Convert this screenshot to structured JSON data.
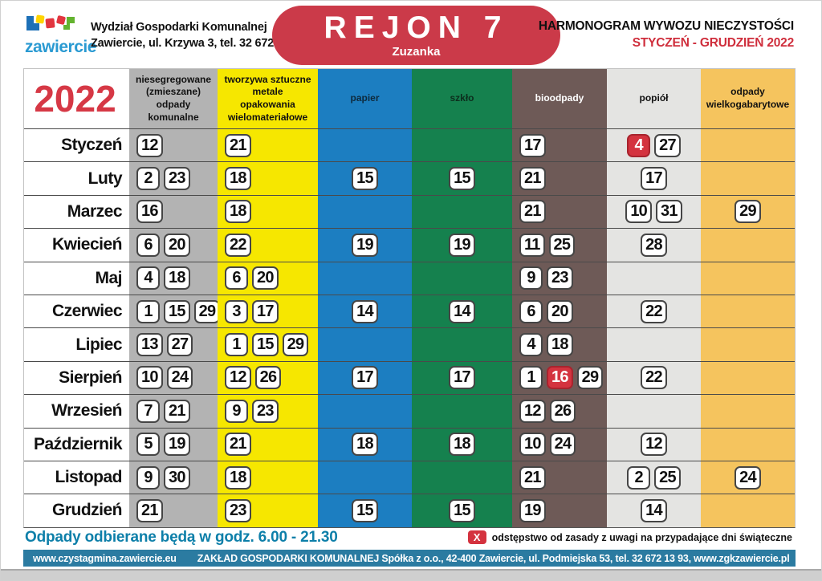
{
  "header": {
    "logo_text": "zawiercie",
    "department_line1": "Wydział Gospodarki Komunalnej",
    "department_line2": "Zawiercie, ul. Krzywa 3, tel. 32 672 23 40",
    "region_title": "REJON 7",
    "region_subtitle": "Zuzanka",
    "title": "HARMONOGRAM WYWOZU NIECZYSTOŚCI",
    "period": "STYCZEŃ - GRUDZIEŃ 2022"
  },
  "year": "2022",
  "colors": {
    "accent_red": "#cb3a49",
    "holiday_chip_red": "#d4333f",
    "footer_teal": "#2b7ba1",
    "hours_text_teal": "#0d7fa9",
    "col_mixed_gray": "#b3b3b3",
    "col_plastics_yellow": "#f6e700",
    "col_paper_blue": "#1c7ec1",
    "col_glass_green": "#15814e",
    "col_bio_brown": "#6e5a57",
    "col_ash_gray": "#e4e4e2",
    "col_bulky_orange": "#f5c45e"
  },
  "columns": [
    {
      "key": "zmieszane",
      "label_lines": [
        "niesegregowane",
        "(zmieszane)",
        "odpady",
        "komunalne"
      ],
      "bg": "#b3b3b3",
      "fg": "#111111",
      "align": "left"
    },
    {
      "key": "tworzywa",
      "label_lines": [
        "tworzywa sztuczne",
        "metale",
        "opakowania",
        "wielomateriałowe"
      ],
      "bg": "#f6e700",
      "fg": "#111111",
      "align": "left"
    },
    {
      "key": "papier",
      "label_lines": [
        "papier"
      ],
      "bg": "#1c7ec1",
      "fg": "#0e2a3d",
      "align": "center"
    },
    {
      "key": "szklo",
      "label_lines": [
        "szkło"
      ],
      "bg": "#15814e",
      "fg": "#0c2e1d",
      "align": "center"
    },
    {
      "key": "bioodpady",
      "label_lines": [
        "bioodpady"
      ],
      "bg": "#6e5a57",
      "fg": "#ffffff",
      "align": "left"
    },
    {
      "key": "popiol",
      "label_lines": [
        "popiół"
      ],
      "bg": "#e4e4e2",
      "fg": "#111111",
      "align": "center"
    },
    {
      "key": "gabaryty",
      "label_lines": [
        "odpady",
        "wielkogabarytowe"
      ],
      "bg": "#f5c45e",
      "fg": "#111111",
      "align": "center"
    }
  ],
  "schedule": [
    {
      "name": "Styczeń",
      "cells": [
        [
          "12"
        ],
        [
          "21"
        ],
        [],
        [],
        [
          "17"
        ],
        [
          {
            "v": "4",
            "holiday": true
          },
          "27"
        ],
        []
      ]
    },
    {
      "name": "Luty",
      "cells": [
        [
          "2",
          "23"
        ],
        [
          "18"
        ],
        [
          "15"
        ],
        [
          "15"
        ],
        [
          "21"
        ],
        [
          "17"
        ],
        []
      ]
    },
    {
      "name": "Marzec",
      "cells": [
        [
          "16"
        ],
        [
          "18"
        ],
        [],
        [],
        [
          "21"
        ],
        [
          "10",
          "31"
        ],
        [
          "29"
        ]
      ]
    },
    {
      "name": "Kwiecień",
      "cells": [
        [
          "6",
          "20"
        ],
        [
          "22"
        ],
        [
          "19"
        ],
        [
          "19"
        ],
        [
          "11",
          "25"
        ],
        [
          "28"
        ],
        []
      ]
    },
    {
      "name": "Maj",
      "cells": [
        [
          "4",
          "18"
        ],
        [
          "6",
          "20"
        ],
        [],
        [],
        [
          "9",
          "23"
        ],
        [],
        []
      ]
    },
    {
      "name": "Czerwiec",
      "cells": [
        [
          "1",
          "15",
          "29"
        ],
        [
          "3",
          "17"
        ],
        [
          "14"
        ],
        [
          "14"
        ],
        [
          "6",
          "20"
        ],
        [
          "22"
        ],
        []
      ]
    },
    {
      "name": "Lipiec",
      "cells": [
        [
          "13",
          "27"
        ],
        [
          "1",
          "15",
          "29"
        ],
        [],
        [],
        [
          "4",
          "18"
        ],
        [],
        []
      ]
    },
    {
      "name": "Sierpień",
      "cells": [
        [
          "10",
          "24"
        ],
        [
          "12",
          "26"
        ],
        [
          "17"
        ],
        [
          "17"
        ],
        [
          "1",
          {
            "v": "16",
            "holiday": true
          },
          "29"
        ],
        [
          "22"
        ],
        []
      ]
    },
    {
      "name": "Wrzesień",
      "cells": [
        [
          "7",
          "21"
        ],
        [
          "9",
          "23"
        ],
        [],
        [],
        [
          "12",
          "26"
        ],
        [],
        []
      ]
    },
    {
      "name": "Październik",
      "cells": [
        [
          "5",
          "19"
        ],
        [
          "21"
        ],
        [
          "18"
        ],
        [
          "18"
        ],
        [
          "10",
          "24"
        ],
        [
          "12"
        ],
        []
      ]
    },
    {
      "name": "Listopad",
      "cells": [
        [
          "9",
          "30"
        ],
        [
          "18"
        ],
        [],
        [],
        [
          "21"
        ],
        [
          "2",
          "25"
        ],
        [
          "24"
        ]
      ]
    },
    {
      "name": "Grudzień",
      "cells": [
        [
          "21"
        ],
        [
          "23"
        ],
        [
          "15"
        ],
        [
          "15"
        ],
        [
          "19"
        ],
        [
          "14"
        ],
        []
      ]
    }
  ],
  "notes": {
    "hours": "Odpady odbierane będą w godz. 6.00 - 21.30",
    "legend_x": "X",
    "legend": "odstępstwo od zasady z uwagi na przypadające dni świąteczne"
  },
  "footer": {
    "site": "www.czystagmina.zawiercie.eu",
    "company": "ZAKŁAD GOSPODARKI KOMUNALNEJ Spółka z o.o., 42-400 Zawiercie, ul. Podmiejska 53, tel. 32 672 13 93, www.zgkzawiercie.pl"
  }
}
